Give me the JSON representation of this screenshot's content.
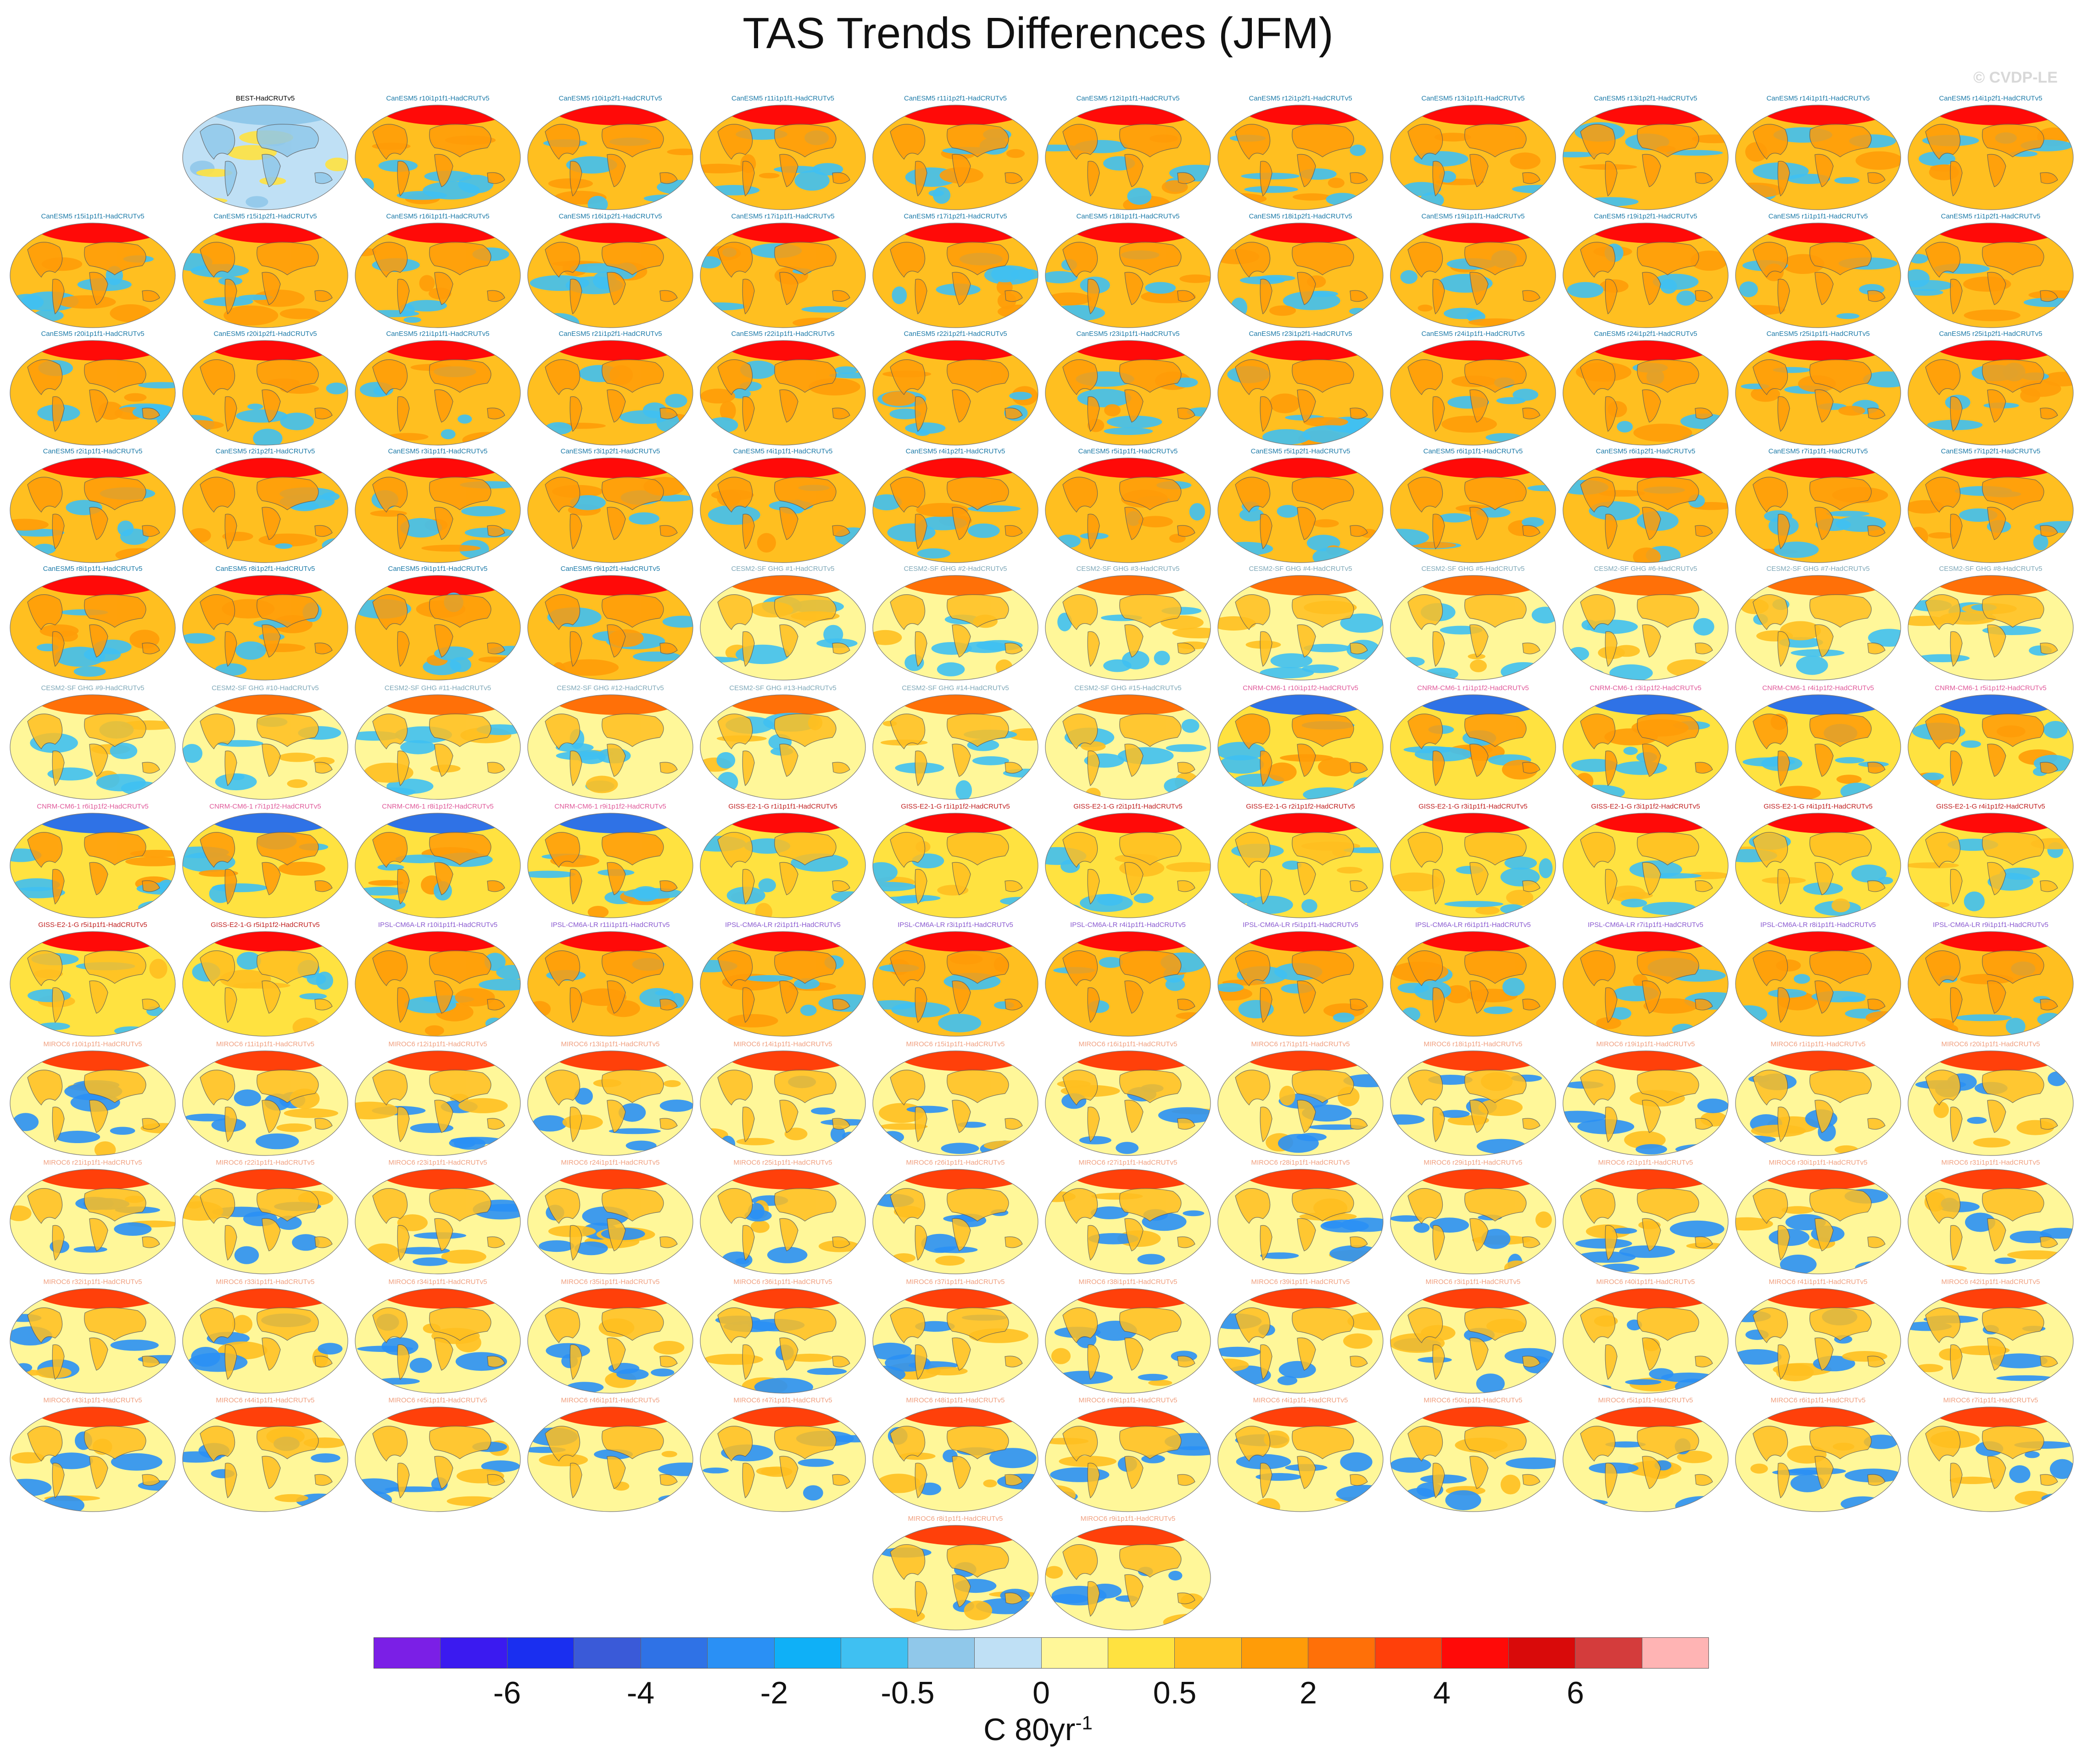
{
  "title": "TAS Trends Differences (JFM)",
  "watermark": "© CVDP-LE",
  "colorbar": {
    "colors": [
      "#7b1fe6",
      "#3b1af0",
      "#1a2ff0",
      "#3a5ad8",
      "#2f72e6",
      "#2a90f5",
      "#0fb0f7",
      "#3fc0f2",
      "#90c8ea",
      "#bfe0f5",
      "#fff799",
      "#ffe240",
      "#ffbf20",
      "#ff9c08",
      "#ff7008",
      "#ff400a",
      "#ff0a08",
      "#d90a0a",
      "#d43c3c",
      "#ffb4b4"
    ],
    "ticks": [
      {
        "label": "-6",
        "index": 2
      },
      {
        "label": "-4",
        "index": 4
      },
      {
        "label": "-2",
        "index": 6
      },
      {
        "label": "-0.5",
        "index": 8
      },
      {
        "label": "0",
        "index": 10
      },
      {
        "label": "0.5",
        "index": 12
      },
      {
        "label": "2",
        "index": 14
      },
      {
        "label": "4",
        "index": 16
      },
      {
        "label": "6",
        "index": 18
      }
    ],
    "units_base": "C 80yr",
    "units_exp": "-1"
  },
  "panels": [
    {
      "label": "BEST-HadCRUTv5",
      "family": "obs"
    },
    {
      "label": "CanESM5 r10i1p1f1-HadCRUTv5",
      "family": "canesm"
    },
    {
      "label": "CanESM5 r10i1p2f1-HadCRUTv5",
      "family": "canesm"
    },
    {
      "label": "CanESM5 r11i1p1f1-HadCRUTv5",
      "family": "canesm"
    },
    {
      "label": "CanESM5 r11i1p2f1-HadCRUTv5",
      "family": "canesm"
    },
    {
      "label": "CanESM5 r12i1p1f1-HadCRUTv5",
      "family": "canesm"
    },
    {
      "label": "CanESM5 r12i1p2f1-HadCRUTv5",
      "family": "canesm"
    },
    {
      "label": "CanESM5 r13i1p1f1-HadCRUTv5",
      "family": "canesm"
    },
    {
      "label": "CanESM5 r13i1p2f1-HadCRUTv5",
      "family": "canesm"
    },
    {
      "label": "CanESM5 r14i1p1f1-HadCRUTv5",
      "family": "canesm"
    },
    {
      "label": "CanESM5 r14i1p2f1-HadCRUTv5",
      "family": "canesm"
    },
    {
      "label": "CanESM5 r15i1p1f1-HadCRUTv5",
      "family": "canesm"
    },
    {
      "label": "CanESM5 r15i1p2f1-HadCRUTv5",
      "family": "canesm"
    },
    {
      "label": "CanESM5 r16i1p1f1-HadCRUTv5",
      "family": "canesm"
    },
    {
      "label": "CanESM5 r16i1p2f1-HadCRUTv5",
      "family": "canesm"
    },
    {
      "label": "CanESM5 r17i1p1f1-HadCRUTv5",
      "family": "canesm"
    },
    {
      "label": "CanESM5 r17i1p2f1-HadCRUTv5",
      "family": "canesm"
    },
    {
      "label": "CanESM5 r18i1p1f1-HadCRUTv5",
      "family": "canesm"
    },
    {
      "label": "CanESM5 r18i1p2f1-HadCRUTv5",
      "family": "canesm"
    },
    {
      "label": "CanESM5 r19i1p1f1-HadCRUTv5",
      "family": "canesm"
    },
    {
      "label": "CanESM5 r19i1p2f1-HadCRUTv5",
      "family": "canesm"
    },
    {
      "label": "CanESM5 r1i1p1f1-HadCRUTv5",
      "family": "canesm"
    },
    {
      "label": "CanESM5 r1i1p2f1-HadCRUTv5",
      "family": "canesm"
    },
    {
      "label": "CanESM5 r20i1p1f1-HadCRUTv5",
      "family": "canesm"
    },
    {
      "label": "CanESM5 r20i1p2f1-HadCRUTv5",
      "family": "canesm"
    },
    {
      "label": "CanESM5 r21i1p1f1-HadCRUTv5",
      "family": "canesm"
    },
    {
      "label": "CanESM5 r21i1p2f1-HadCRUTv5",
      "family": "canesm"
    },
    {
      "label": "CanESM5 r22i1p1f1-HadCRUTv5",
      "family": "canesm"
    },
    {
      "label": "CanESM5 r22i1p2f1-HadCRUTv5",
      "family": "canesm"
    },
    {
      "label": "CanESM5 r23i1p1f1-HadCRUTv5",
      "family": "canesm"
    },
    {
      "label": "CanESM5 r23i1p2f1-HadCRUTv5",
      "family": "canesm"
    },
    {
      "label": "CanESM5 r24i1p1f1-HadCRUTv5",
      "family": "canesm"
    },
    {
      "label": "CanESM5 r24i1p2f1-HadCRUTv5",
      "family": "canesm"
    },
    {
      "label": "CanESM5 r25i1p1f1-HadCRUTv5",
      "family": "canesm"
    },
    {
      "label": "CanESM5 r25i1p2f1-HadCRUTv5",
      "family": "canesm"
    },
    {
      "label": "CanESM5 r2i1p1f1-HadCRUTv5",
      "family": "canesm"
    },
    {
      "label": "CanESM5 r2i1p2f1-HadCRUTv5",
      "family": "canesm"
    },
    {
      "label": "CanESM5 r3i1p1f1-HadCRUTv5",
      "family": "canesm"
    },
    {
      "label": "CanESM5 r3i1p2f1-HadCRUTv5",
      "family": "canesm"
    },
    {
      "label": "CanESM5 r4i1p1f1-HadCRUTv5",
      "family": "canesm"
    },
    {
      "label": "CanESM5 r4i1p2f1-HadCRUTv5",
      "family": "canesm"
    },
    {
      "label": "CanESM5 r5i1p1f1-HadCRUTv5",
      "family": "canesm"
    },
    {
      "label": "CanESM5 r5i1p2f1-HadCRUTv5",
      "family": "canesm"
    },
    {
      "label": "CanESM5 r6i1p1f1-HadCRUTv5",
      "family": "canesm"
    },
    {
      "label": "CanESM5 r6i1p2f1-HadCRUTv5",
      "family": "canesm"
    },
    {
      "label": "CanESM5 r7i1p1f1-HadCRUTv5",
      "family": "canesm"
    },
    {
      "label": "CanESM5 r7i1p2f1-HadCRUTv5",
      "family": "canesm"
    },
    {
      "label": "CanESM5 r8i1p1f1-HadCRUTv5",
      "family": "canesm"
    },
    {
      "label": "CanESM5 r8i1p2f1-HadCRUTv5",
      "family": "canesm"
    },
    {
      "label": "CanESM5 r9i1p1f1-HadCRUTv5",
      "family": "canesm"
    },
    {
      "label": "CanESM5 r9i1p2f1-HadCRUTv5",
      "family": "canesm"
    },
    {
      "label": "CESM2-SF GHG #1-HadCRUTv5",
      "family": "cesm"
    },
    {
      "label": "CESM2-SF GHG #2-HadCRUTv5",
      "family": "cesm"
    },
    {
      "label": "CESM2-SF GHG #3-HadCRUTv5",
      "family": "cesm"
    },
    {
      "label": "CESM2-SF GHG #4-HadCRUTv5",
      "family": "cesm"
    },
    {
      "label": "CESM2-SF GHG #5-HadCRUTv5",
      "family": "cesm"
    },
    {
      "label": "CESM2-SF GHG #6-HadCRUTv5",
      "family": "cesm"
    },
    {
      "label": "CESM2-SF GHG #7-HadCRUTv5",
      "family": "cesm"
    },
    {
      "label": "CESM2-SF GHG #8-HadCRUTv5",
      "family": "cesm"
    },
    {
      "label": "CESM2-SF GHG #9-HadCRUTv5",
      "family": "cesm"
    },
    {
      "label": "CESM2-SF GHG #10-HadCRUTv5",
      "family": "cesm"
    },
    {
      "label": "CESM2-SF GHG #11-HadCRUTv5",
      "family": "cesm"
    },
    {
      "label": "CESM2-SF GHG #12-HadCRUTv5",
      "family": "cesm"
    },
    {
      "label": "CESM2-SF GHG #13-HadCRUTv5",
      "family": "cesm"
    },
    {
      "label": "CESM2-SF GHG #14-HadCRUTv5",
      "family": "cesm"
    },
    {
      "label": "CESM2-SF GHG #15-HadCRUTv5",
      "family": "cesm"
    },
    {
      "label": "CNRM-CM6-1 r10i1p1f2-HadCRUTv5",
      "family": "cnrm"
    },
    {
      "label": "CNRM-CM6-1 r1i1p1f2-HadCRUTv5",
      "family": "cnrm"
    },
    {
      "label": "CNRM-CM6-1 r3i1p1f2-HadCRUTv5",
      "family": "cnrm"
    },
    {
      "label": "CNRM-CM6-1 r4i1p1f2-HadCRUTv5",
      "family": "cnrm"
    },
    {
      "label": "CNRM-CM6-1 r5i1p1f2-HadCRUTv5",
      "family": "cnrm"
    },
    {
      "label": "CNRM-CM6-1 r6i1p1f2-HadCRUTv5",
      "family": "cnrm"
    },
    {
      "label": "CNRM-CM6-1 r7i1p1f2-HadCRUTv5",
      "family": "cnrm"
    },
    {
      "label": "CNRM-CM6-1 r8i1p1f2-HadCRUTv5",
      "family": "cnrm"
    },
    {
      "label": "CNRM-CM6-1 r9i1p1f2-HadCRUTv5",
      "family": "cnrm"
    },
    {
      "label": "GISS-E2-1-G r1i1p1f1-HadCRUTv5",
      "family": "giss"
    },
    {
      "label": "GISS-E2-1-G r1i1p1f2-HadCRUTv5",
      "family": "giss"
    },
    {
      "label": "GISS-E2-1-G r2i1p1f1-HadCRUTv5",
      "family": "giss"
    },
    {
      "label": "GISS-E2-1-G r2i1p1f2-HadCRUTv5",
      "family": "giss"
    },
    {
      "label": "GISS-E2-1-G r3i1p1f1-HadCRUTv5",
      "family": "giss"
    },
    {
      "label": "GISS-E2-1-G r3i1p1f2-HadCRUTv5",
      "family": "giss"
    },
    {
      "label": "GISS-E2-1-G r4i1p1f1-HadCRUTv5",
      "family": "giss"
    },
    {
      "label": "GISS-E2-1-G r4i1p1f2-HadCRUTv5",
      "family": "giss"
    },
    {
      "label": "GISS-E2-1-G r5i1p1f1-HadCRUTv5",
      "family": "giss"
    },
    {
      "label": "GISS-E2-1-G r5i1p1f2-HadCRUTv5",
      "family": "giss"
    },
    {
      "label": "IPSL-CM6A-LR r10i1p1f1-HadCRUTv5",
      "family": "ipsl"
    },
    {
      "label": "IPSL-CM6A-LR r11i1p1f1-HadCRUTv5",
      "family": "ipsl"
    },
    {
      "label": "IPSL-CM6A-LR r2i1p1f1-HadCRUTv5",
      "family": "ipsl"
    },
    {
      "label": "IPSL-CM6A-LR r3i1p1f1-HadCRUTv5",
      "family": "ipsl"
    },
    {
      "label": "IPSL-CM6A-LR r4i1p1f1-HadCRUTv5",
      "family": "ipsl"
    },
    {
      "label": "IPSL-CM6A-LR r5i1p1f1-HadCRUTv5",
      "family": "ipsl"
    },
    {
      "label": "IPSL-CM6A-LR r6i1p1f1-HadCRUTv5",
      "family": "ipsl"
    },
    {
      "label": "IPSL-CM6A-LR r7i1p1f1-HadCRUTv5",
      "family": "ipsl"
    },
    {
      "label": "IPSL-CM6A-LR r8i1p1f1-HadCRUTv5",
      "family": "ipsl"
    },
    {
      "label": "IPSL-CM6A-LR r9i1p1f1-HadCRUTv5",
      "family": "ipsl"
    },
    {
      "label": "MIROC6 r10i1p1f1-HadCRUTv5",
      "family": "miroc"
    },
    {
      "label": "MIROC6 r11i1p1f1-HadCRUTv5",
      "family": "miroc"
    },
    {
      "label": "MIROC6 r12i1p1f1-HadCRUTv5",
      "family": "miroc"
    },
    {
      "label": "MIROC6 r13i1p1f1-HadCRUTv5",
      "family": "miroc"
    },
    {
      "label": "MIROC6 r14i1p1f1-HadCRUTv5",
      "family": "miroc"
    },
    {
      "label": "MIROC6 r15i1p1f1-HadCRUTv5",
      "family": "miroc"
    },
    {
      "label": "MIROC6 r16i1p1f1-HadCRUTv5",
      "family": "miroc"
    },
    {
      "label": "MIROC6 r17i1p1f1-HadCRUTv5",
      "family": "miroc"
    },
    {
      "label": "MIROC6 r18i1p1f1-HadCRUTv5",
      "family": "miroc"
    },
    {
      "label": "MIROC6 r19i1p1f1-HadCRUTv5",
      "family": "miroc"
    },
    {
      "label": "MIROC6 r1i1p1f1-HadCRUTv5",
      "family": "miroc"
    },
    {
      "label": "MIROC6 r20i1p1f1-HadCRUTv5",
      "family": "miroc"
    },
    {
      "label": "MIROC6 r21i1p1f1-HadCRUTv5",
      "family": "miroc"
    },
    {
      "label": "MIROC6 r22i1p1f1-HadCRUTv5",
      "family": "miroc"
    },
    {
      "label": "MIROC6 r23i1p1f1-HadCRUTv5",
      "family": "miroc"
    },
    {
      "label": "MIROC6 r24i1p1f1-HadCRUTv5",
      "family": "miroc"
    },
    {
      "label": "MIROC6 r25i1p1f1-HadCRUTv5",
      "family": "miroc"
    },
    {
      "label": "MIROC6 r26i1p1f1-HadCRUTv5",
      "family": "miroc"
    },
    {
      "label": "MIROC6 r27i1p1f1-HadCRUTv5",
      "family": "miroc"
    },
    {
      "label": "MIROC6 r28i1p1f1-HadCRUTv5",
      "family": "miroc"
    },
    {
      "label": "MIROC6 r29i1p1f1-HadCRUTv5",
      "family": "miroc"
    },
    {
      "label": "MIROC6 r2i1p1f1-HadCRUTv5",
      "family": "miroc"
    },
    {
      "label": "MIROC6 r30i1p1f1-HadCRUTv5",
      "family": "miroc"
    },
    {
      "label": "MIROC6 r31i1p1f1-HadCRUTv5",
      "family": "miroc"
    },
    {
      "label": "MIROC6 r32i1p1f1-HadCRUTv5",
      "family": "miroc"
    },
    {
      "label": "MIROC6 r33i1p1f1-HadCRUTv5",
      "family": "miroc"
    },
    {
      "label": "MIROC6 r34i1p1f1-HadCRUTv5",
      "family": "miroc"
    },
    {
      "label": "MIROC6 r35i1p1f1-HadCRUTv5",
      "family": "miroc"
    },
    {
      "label": "MIROC6 r36i1p1f1-HadCRUTv5",
      "family": "miroc"
    },
    {
      "label": "MIROC6 r37i1p1f1-HadCRUTv5",
      "family": "miroc"
    },
    {
      "label": "MIROC6 r38i1p1f1-HadCRUTv5",
      "family": "miroc"
    },
    {
      "label": "MIROC6 r39i1p1f1-HadCRUTv5",
      "family": "miroc"
    },
    {
      "label": "MIROC6 r3i1p1f1-HadCRUTv5",
      "family": "miroc"
    },
    {
      "label": "MIROC6 r40i1p1f1-HadCRUTv5",
      "family": "miroc"
    },
    {
      "label": "MIROC6 r41i1p1f1-HadCRUTv5",
      "family": "miroc"
    },
    {
      "label": "MIROC6 r42i1p1f1-HadCRUTv5",
      "family": "miroc"
    },
    {
      "label": "MIROC6 r43i1p1f1-HadCRUTv5",
      "family": "miroc"
    },
    {
      "label": "MIROC6 r44i1p1f1-HadCRUTv5",
      "family": "miroc"
    },
    {
      "label": "MIROC6 r45i1p1f1-HadCRUTv5",
      "family": "miroc"
    },
    {
      "label": "MIROC6 r46i1p1f1-HadCRUTv5",
      "family": "miroc"
    },
    {
      "label": "MIROC6 r47i1p1f1-HadCRUTv5",
      "family": "miroc"
    },
    {
      "label": "MIROC6 r48i1p1f1-HadCRUTv5",
      "family": "miroc"
    },
    {
      "label": "MIROC6 r49i1p1f1-HadCRUTv5",
      "family": "miroc"
    },
    {
      "label": "MIROC6 r4i1p1f1-HadCRUTv5",
      "family": "miroc"
    },
    {
      "label": "MIROC6 r50i1p1f1-HadCRUTv5",
      "family": "miroc"
    },
    {
      "label": "MIROC6 r5i1p1f1-HadCRUTv5",
      "family": "miroc"
    },
    {
      "label": "MIROC6 r6i1p1f1-HadCRUTv5",
      "family": "miroc"
    },
    {
      "label": "MIROC6 r7i1p1f1-HadCRUTv5",
      "family": "miroc"
    },
    {
      "label": "MIROC6 r8i1p1f1-HadCRUTv5",
      "family": "miroc"
    },
    {
      "label": "MIROC6 r9i1p1f1-HadCRUTv5",
      "family": "miroc"
    }
  ],
  "families": {
    "obs": {
      "label_color": "#000000",
      "ocean": "#bfe0f5",
      "land": "#90c8ea",
      "patch": "#ffe240",
      "arctic": "#90c8ea"
    },
    "canesm": {
      "label_color": "#1c7aa8",
      "ocean": "#ffbf20",
      "land": "#ff9c08",
      "patch": "#3fc0f2",
      "arctic": "#ff0a08"
    },
    "cesm": {
      "label_color": "#7fa8b8",
      "ocean": "#fff799",
      "land": "#ffbf20",
      "patch": "#3fc0f2",
      "arctic": "#ff7008"
    },
    "cnrm": {
      "label_color": "#e05a9a",
      "ocean": "#ffe240",
      "land": "#ff9c08",
      "patch": "#3fc0f2",
      "arctic": "#2f72e6"
    },
    "giss": {
      "label_color": "#c02020",
      "ocean": "#ffe240",
      "land": "#ffbf20",
      "patch": "#3fc0f2",
      "arctic": "#ff0a08"
    },
    "ipsl": {
      "label_color": "#8a5ad0",
      "ocean": "#ffbf20",
      "land": "#ff9c08",
      "patch": "#3fc0f2",
      "arctic": "#ff0a08"
    },
    "miroc": {
      "label_color": "#f0a080",
      "ocean": "#fff799",
      "land": "#ffbf20",
      "patch": "#2a90f5",
      "arctic": "#ff400a"
    }
  }
}
